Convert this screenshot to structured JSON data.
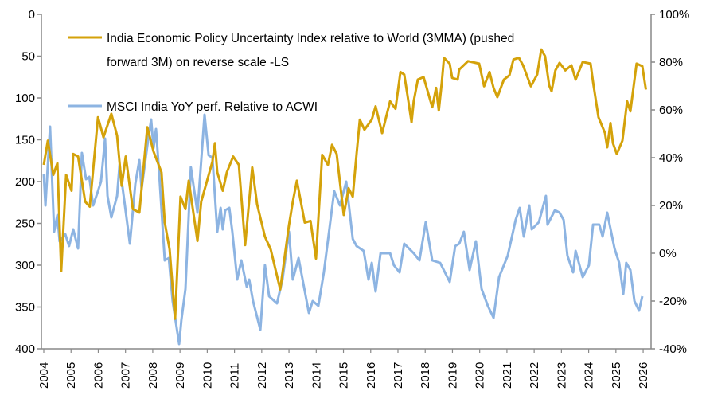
{
  "chart_data": {
    "type": "line",
    "title": "",
    "x_axis": {
      "label": "",
      "range": [
        2004,
        2026
      ],
      "ticks": [
        "2004",
        "2005",
        "2006",
        "2007",
        "2008",
        "2009",
        "2010",
        "2011",
        "2012",
        "2013",
        "2014",
        "2015",
        "2016",
        "2017",
        "2018",
        "2019",
        "2020",
        "2021",
        "2022",
        "2023",
        "2024",
        "2025",
        "2026"
      ]
    },
    "y_left": {
      "label": "",
      "range": [
        0,
        400
      ],
      "reversed": true,
      "ticks": [
        "0",
        "50",
        "100",
        "150",
        "200",
        "250",
        "300",
        "350",
        "400"
      ]
    },
    "y_right": {
      "label": "",
      "range": [
        -40,
        100
      ],
      "unit": "%",
      "ticks": [
        "100%",
        "80%",
        "60%",
        "40%",
        "20%",
        "0%",
        "-20%",
        "-40%"
      ]
    },
    "x_note": "points are [years since 2004, value]",
    "legend": {
      "placement": "top-left"
    },
    "series": [
      {
        "name": "India Economic Policy Uncertainty Index relative to World (3MMA) (pushed forward 3M)  on reverse scale -LS",
        "legend_lines": [
          "India Economic Policy Uncertainty Index relative to World (3MMA) (pushed",
          "forward 3M)  on reverse scale -LS"
        ],
        "axis": "left",
        "color": "#D4A20A",
        "points": [
          [
            0.0,
            180
          ],
          [
            0.15,
            151
          ],
          [
            0.35,
            192
          ],
          [
            0.5,
            178
          ],
          [
            0.64,
            307
          ],
          [
            0.82,
            192
          ],
          [
            1.02,
            211
          ],
          [
            1.08,
            167
          ],
          [
            1.26,
            170
          ],
          [
            1.52,
            224
          ],
          [
            1.69,
            230
          ],
          [
            1.99,
            123
          ],
          [
            2.19,
            147
          ],
          [
            2.48,
            119
          ],
          [
            2.69,
            145
          ],
          [
            2.86,
            205
          ],
          [
            3.01,
            170
          ],
          [
            3.27,
            233
          ],
          [
            3.51,
            237
          ],
          [
            3.8,
            135
          ],
          [
            4.03,
            164
          ],
          [
            4.32,
            189
          ],
          [
            4.44,
            249
          ],
          [
            4.62,
            281
          ],
          [
            4.82,
            364
          ],
          [
            5.02,
            218
          ],
          [
            5.2,
            233
          ],
          [
            5.32,
            199
          ],
          [
            5.64,
            271
          ],
          [
            5.78,
            224
          ],
          [
            6.19,
            176
          ],
          [
            6.28,
            154
          ],
          [
            6.37,
            189
          ],
          [
            6.57,
            211
          ],
          [
            6.72,
            189
          ],
          [
            6.95,
            170
          ],
          [
            7.16,
            180
          ],
          [
            7.39,
            276
          ],
          [
            7.65,
            183
          ],
          [
            7.83,
            227
          ],
          [
            8.12,
            266
          ],
          [
            8.33,
            281
          ],
          [
            8.68,
            329
          ],
          [
            9.0,
            252
          ],
          [
            9.14,
            224
          ],
          [
            9.29,
            199
          ],
          [
            9.58,
            249
          ],
          [
            9.79,
            247
          ],
          [
            9.99,
            292
          ],
          [
            10.22,
            168
          ],
          [
            10.43,
            180
          ],
          [
            10.58,
            156
          ],
          [
            10.75,
            167
          ],
          [
            11.01,
            240
          ],
          [
            11.19,
            208
          ],
          [
            11.34,
            218
          ],
          [
            11.48,
            167
          ],
          [
            11.6,
            126
          ],
          [
            11.77,
            138
          ],
          [
            12.04,
            126
          ],
          [
            12.18,
            110
          ],
          [
            12.42,
            142
          ],
          [
            12.71,
            104
          ],
          [
            12.91,
            113
          ],
          [
            13.09,
            69
          ],
          [
            13.23,
            72
          ],
          [
            13.35,
            97
          ],
          [
            13.5,
            129
          ],
          [
            13.58,
            104
          ],
          [
            13.73,
            78
          ],
          [
            13.94,
            75
          ],
          [
            14.26,
            111
          ],
          [
            14.4,
            88
          ],
          [
            14.5,
            115
          ],
          [
            14.61,
            81
          ],
          [
            14.69,
            52
          ],
          [
            14.9,
            59
          ],
          [
            14.99,
            76
          ],
          [
            15.19,
            78
          ],
          [
            15.25,
            66
          ],
          [
            15.57,
            56
          ],
          [
            15.98,
            59
          ],
          [
            16.16,
            86
          ],
          [
            16.36,
            69
          ],
          [
            16.51,
            88
          ],
          [
            16.65,
            99
          ],
          [
            16.89,
            78
          ],
          [
            17.09,
            73
          ],
          [
            17.24,
            54
          ],
          [
            17.44,
            52
          ],
          [
            17.59,
            61
          ],
          [
            17.88,
            86
          ],
          [
            18.11,
            72
          ],
          [
            18.26,
            42
          ],
          [
            18.4,
            50
          ],
          [
            18.55,
            85
          ],
          [
            18.64,
            92
          ],
          [
            18.78,
            67
          ],
          [
            18.93,
            58
          ],
          [
            19.14,
            67
          ],
          [
            19.37,
            61
          ],
          [
            19.52,
            78
          ],
          [
            19.78,
            57
          ],
          [
            20.07,
            59
          ],
          [
            20.16,
            81
          ],
          [
            20.36,
            123
          ],
          [
            20.6,
            142
          ],
          [
            20.68,
            159
          ],
          [
            20.8,
            130
          ],
          [
            20.89,
            154
          ],
          [
            21.03,
            167
          ],
          [
            21.24,
            151
          ],
          [
            21.41,
            104
          ],
          [
            21.53,
            116
          ],
          [
            21.76,
            59
          ],
          [
            21.97,
            62
          ],
          [
            22.1,
            90
          ]
        ]
      },
      {
        "name": "MSCI India YoY perf. Relative to ACWI",
        "legend_lines": [
          "MSCI India YoY perf. Relative to ACWI"
        ],
        "axis": "right",
        "color": "#8DB4E2",
        "points": [
          [
            0.0,
            33
          ],
          [
            0.06,
            20
          ],
          [
            0.23,
            53
          ],
          [
            0.38,
            9
          ],
          [
            0.5,
            16
          ],
          [
            0.58,
            5
          ],
          [
            0.79,
            8
          ],
          [
            0.93,
            3
          ],
          [
            1.08,
            10
          ],
          [
            1.26,
            2
          ],
          [
            1.4,
            42
          ],
          [
            1.55,
            31
          ],
          [
            1.67,
            32
          ],
          [
            1.81,
            20
          ],
          [
            1.99,
            26
          ],
          [
            2.1,
            30
          ],
          [
            2.25,
            48
          ],
          [
            2.34,
            24
          ],
          [
            2.48,
            15
          ],
          [
            2.69,
            24
          ],
          [
            2.78,
            37
          ],
          [
            2.92,
            25
          ],
          [
            3.16,
            4
          ],
          [
            3.36,
            29
          ],
          [
            3.51,
            39
          ],
          [
            3.59,
            27
          ],
          [
            3.8,
            45
          ],
          [
            3.94,
            56
          ],
          [
            4.03,
            44
          ],
          [
            4.12,
            52
          ],
          [
            4.24,
            33
          ],
          [
            4.44,
            -3
          ],
          [
            4.59,
            -2
          ],
          [
            4.73,
            -20
          ],
          [
            4.97,
            -38
          ],
          [
            5.05,
            -28
          ],
          [
            5.2,
            -15
          ],
          [
            5.4,
            36
          ],
          [
            5.64,
            17
          ],
          [
            5.9,
            58
          ],
          [
            6.05,
            41
          ],
          [
            6.19,
            40
          ],
          [
            6.37,
            9
          ],
          [
            6.49,
            19
          ],
          [
            6.57,
            10
          ],
          [
            6.66,
            18
          ],
          [
            6.81,
            19
          ],
          [
            6.92,
            9
          ],
          [
            7.1,
            -11
          ],
          [
            7.25,
            -3
          ],
          [
            7.45,
            -14
          ],
          [
            7.54,
            -11
          ],
          [
            7.68,
            -20
          ],
          [
            7.95,
            -32
          ],
          [
            8.12,
            -5
          ],
          [
            8.27,
            -18
          ],
          [
            8.56,
            -21
          ],
          [
            8.76,
            -11
          ],
          [
            9.0,
            9
          ],
          [
            9.14,
            -11
          ],
          [
            9.35,
            -2
          ],
          [
            9.73,
            -25
          ],
          [
            9.87,
            -20
          ],
          [
            10.08,
            -22
          ],
          [
            10.28,
            -8
          ],
          [
            10.66,
            26
          ],
          [
            10.87,
            20
          ],
          [
            11.1,
            30
          ],
          [
            11.34,
            6
          ],
          [
            11.48,
            3
          ],
          [
            11.74,
            1
          ],
          [
            11.92,
            -11
          ],
          [
            12.04,
            -4
          ],
          [
            12.18,
            -16
          ],
          [
            12.36,
            0
          ],
          [
            12.71,
            0
          ],
          [
            12.85,
            -5
          ],
          [
            13.06,
            -8
          ],
          [
            13.23,
            4
          ],
          [
            13.58,
            0
          ],
          [
            13.79,
            -3
          ],
          [
            14.02,
            13
          ],
          [
            14.26,
            -3
          ],
          [
            14.55,
            -4
          ],
          [
            14.9,
            -12
          ],
          [
            15.1,
            3
          ],
          [
            15.25,
            4
          ],
          [
            15.42,
            9
          ],
          [
            15.63,
            -7
          ],
          [
            15.86,
            5
          ],
          [
            16.07,
            -15
          ],
          [
            16.3,
            -22
          ],
          [
            16.51,
            -27
          ],
          [
            16.71,
            -10
          ],
          [
            17.03,
            -1
          ],
          [
            17.32,
            14
          ],
          [
            17.47,
            19
          ],
          [
            17.62,
            7
          ],
          [
            17.82,
            20
          ],
          [
            17.91,
            10
          ],
          [
            18.17,
            13
          ],
          [
            18.43,
            24
          ],
          [
            18.49,
            12
          ],
          [
            18.76,
            18
          ],
          [
            18.93,
            17
          ],
          [
            19.08,
            14
          ],
          [
            19.22,
            -1
          ],
          [
            19.43,
            -8
          ],
          [
            19.52,
            1
          ],
          [
            19.78,
            -10
          ],
          [
            20.01,
            -5
          ],
          [
            20.16,
            12
          ],
          [
            20.39,
            12
          ],
          [
            20.51,
            7
          ],
          [
            20.68,
            17
          ],
          [
            20.95,
            2
          ],
          [
            21.12,
            -4
          ],
          [
            21.27,
            -17
          ],
          [
            21.38,
            -4
          ],
          [
            21.53,
            -7
          ],
          [
            21.68,
            -20
          ],
          [
            21.85,
            -24
          ],
          [
            21.97,
            -18
          ]
        ]
      }
    ]
  }
}
